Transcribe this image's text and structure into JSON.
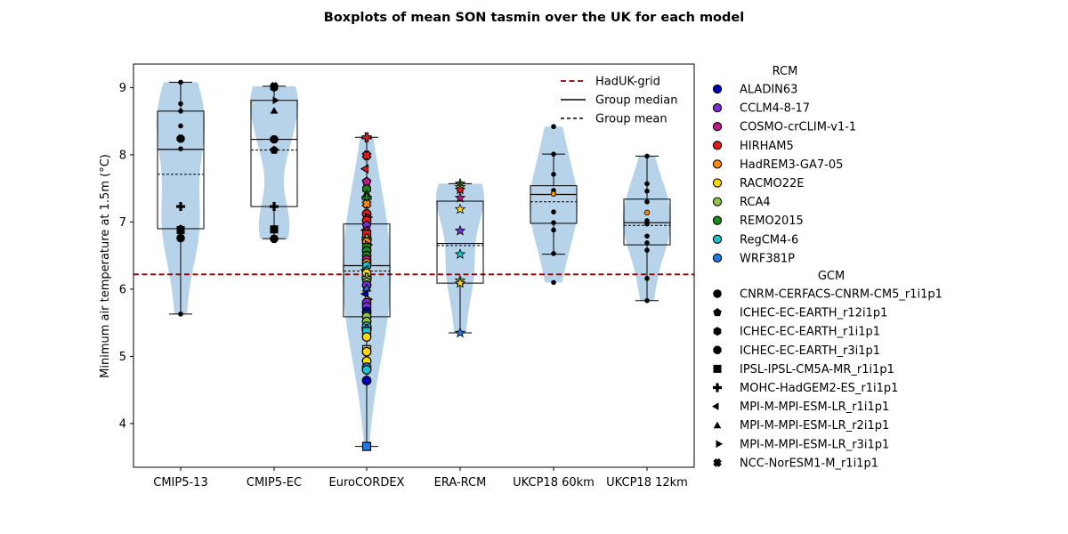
{
  "chart_data": {
    "type": "box",
    "title": "Boxplots of mean SON tasmin over the UK for each model",
    "ylabel": "Minimum air temperature at 1.5m (°C)",
    "xlabel": "",
    "ylim": [
      3.35,
      9.35
    ],
    "yticks": [
      4,
      5,
      6,
      7,
      8,
      9
    ],
    "reference_line": {
      "label": "HadUK-grid",
      "value": 6.22,
      "color": "#8b0000"
    },
    "line_legend": [
      {
        "label": "HadUK-grid",
        "style": "dashed",
        "color": "#8b0000"
      },
      {
        "label": "Group median",
        "style": "solid",
        "color": "#000000"
      },
      {
        "label": "Group mean",
        "style": "dashed",
        "color": "#000000"
      }
    ],
    "rcm_legend_title": "RCM",
    "rcm_legend": [
      {
        "label": "ALADIN63",
        "color": "#0000b4"
      },
      {
        "label": "CCLM4-8-17",
        "color": "#7b2fd6"
      },
      {
        "label": "COSMO-crCLIM-v1-1",
        "color": "#c0188a"
      },
      {
        "label": "HIRHAM5",
        "color": "#e41a1c"
      },
      {
        "label": "HadREM3-GA7-05",
        "color": "#ff8c00"
      },
      {
        "label": "RACMO22E",
        "color": "#ffd700"
      },
      {
        "label": "RCA4",
        "color": "#8dc63f"
      },
      {
        "label": "REMO2015",
        "color": "#1a8a1a"
      },
      {
        "label": "RegCM4-6",
        "color": "#17c6cf"
      },
      {
        "label": "WRF381P",
        "color": "#1e7be6"
      }
    ],
    "gcm_legend_title": "GCM",
    "gcm_legend": [
      {
        "label": "CNRM-CERFACS-CNRM-CM5_r1i1p1",
        "marker": "circle"
      },
      {
        "label": "ICHEC-EC-EARTH_r12i1p1",
        "marker": "pentagon"
      },
      {
        "label": "ICHEC-EC-EARTH_r1i1p1",
        "marker": "hexagon"
      },
      {
        "label": "ICHEC-EC-EARTH_r3i1p1",
        "marker": "octagon"
      },
      {
        "label": "IPSL-IPSL-CM5A-MR_r1i1p1",
        "marker": "square"
      },
      {
        "label": "MOHC-HadGEM2-ES_r1i1p1",
        "marker": "plus"
      },
      {
        "label": "MPI-M-MPI-ESM-LR_r1i1p1",
        "marker": "triangle-left"
      },
      {
        "label": "MPI-M-MPI-ESM-LR_r2i1p1",
        "marker": "triangle-up"
      },
      {
        "label": "MPI-M-MPI-ESM-LR_r3i1p1",
        "marker": "triangle-right"
      },
      {
        "label": "NCC-NorESM1-M_r1i1p1",
        "marker": "x"
      }
    ],
    "groups": [
      {
        "name": "CMIP5-13",
        "min": 5.63,
        "q1": 6.9,
        "median": 8.08,
        "mean": 7.71,
        "q3": 8.65,
        "max": 9.08,
        "violin_bottom": 5.63,
        "violin_top": 9.08,
        "points": [
          {
            "v": 9.08,
            "m": "dot"
          },
          {
            "v": 8.76,
            "m": "dot"
          },
          {
            "v": 8.65,
            "m": "dot"
          },
          {
            "v": 8.43,
            "m": "dot"
          },
          {
            "v": 8.24,
            "m": "octagon"
          },
          {
            "v": 8.09,
            "m": "dot"
          },
          {
            "v": 7.23,
            "m": "plus"
          },
          {
            "v": 6.92,
            "m": "dot"
          },
          {
            "v": 6.88,
            "m": "square"
          },
          {
            "v": 6.76,
            "m": "circle"
          },
          {
            "v": 5.63,
            "m": "dot"
          }
        ]
      },
      {
        "name": "CMIP5-EC",
        "min": 6.75,
        "q1": 7.23,
        "median": 8.23,
        "mean": 8.07,
        "q3": 8.81,
        "max": 9.02,
        "violin_bottom": 6.75,
        "violin_top": 9.02,
        "points": [
          {
            "v": 9.02,
            "m": "x"
          },
          {
            "v": 9.0,
            "m": "hexagon"
          },
          {
            "v": 8.81,
            "m": "triangle-right"
          },
          {
            "v": 8.66,
            "m": "triangle-up"
          },
          {
            "v": 8.23,
            "m": "octagon"
          },
          {
            "v": 8.07,
            "m": "pentagon"
          },
          {
            "v": 7.23,
            "m": "plus"
          },
          {
            "v": 6.89,
            "m": "square"
          },
          {
            "v": 6.75,
            "m": "circle"
          }
        ]
      },
      {
        "name": "EuroCORDEX",
        "min": 3.66,
        "q1": 5.59,
        "median": 6.35,
        "mean": 6.27,
        "q3": 6.97,
        "max": 8.26,
        "violin_bottom": 3.66,
        "violin_top": 8.26,
        "points": [
          {
            "v": 8.26,
            "m": "plus",
            "c": 3
          },
          {
            "v": 7.99,
            "m": "x",
            "c": 3
          },
          {
            "v": 7.79,
            "m": "triangle-left",
            "c": 3
          },
          {
            "v": 7.6,
            "m": "pentagon",
            "c": 2
          },
          {
            "v": 7.49,
            "m": "hexagon",
            "c": 7
          },
          {
            "v": 7.42,
            "m": "triangle-up",
            "c": 7
          },
          {
            "v": 7.36,
            "m": "plus",
            "c": 7
          },
          {
            "v": 7.27,
            "m": "x",
            "c": 4
          },
          {
            "v": 7.12,
            "m": "circle",
            "c": 3
          },
          {
            "v": 7.07,
            "m": "triangle-right",
            "c": 2
          },
          {
            "v": 7.02,
            "m": "circle",
            "c": 3
          },
          {
            "v": 6.95,
            "m": "pentagon",
            "c": 1
          },
          {
            "v": 6.88,
            "m": "triangle-left",
            "c": 3
          },
          {
            "v": 6.82,
            "m": "square",
            "c": 3
          },
          {
            "v": 6.75,
            "m": "plus",
            "c": 6
          },
          {
            "v": 6.7,
            "m": "circle",
            "c": 4
          },
          {
            "v": 6.66,
            "m": "triangle-right",
            "c": 5
          },
          {
            "v": 6.62,
            "m": "square",
            "c": 7
          },
          {
            "v": 6.57,
            "m": "circle",
            "c": 7
          },
          {
            "v": 6.5,
            "m": "circle",
            "c": 7
          },
          {
            "v": 6.44,
            "m": "circle",
            "c": 2
          },
          {
            "v": 6.39,
            "m": "circle",
            "c": 4
          },
          {
            "v": 6.35,
            "m": "hexagon",
            "c": 8
          },
          {
            "v": 6.29,
            "m": "triangle-left",
            "c": 8
          },
          {
            "v": 6.24,
            "m": "octagon",
            "c": 5
          },
          {
            "v": 6.17,
            "m": "plus",
            "c": 6
          },
          {
            "v": 6.11,
            "m": "pentagon",
            "c": 6
          },
          {
            "v": 6.06,
            "m": "circle",
            "c": 1
          },
          {
            "v": 6.02,
            "m": "triangle-up",
            "c": 9
          },
          {
            "v": 5.93,
            "m": "triangle-left",
            "c": 0
          },
          {
            "v": 5.85,
            "m": "triangle-right",
            "c": 5
          },
          {
            "v": 5.8,
            "m": "circle",
            "c": 1
          },
          {
            "v": 5.74,
            "m": "octagon",
            "c": 1
          },
          {
            "v": 5.67,
            "m": "circle",
            "c": 0
          },
          {
            "v": 5.62,
            "m": "x",
            "c": 9
          },
          {
            "v": 5.59,
            "m": "circle",
            "c": 6
          },
          {
            "v": 5.52,
            "m": "circle",
            "c": 6
          },
          {
            "v": 5.45,
            "m": "circle",
            "c": 8
          },
          {
            "v": 5.41,
            "m": "plus",
            "c": 9
          },
          {
            "v": 5.37,
            "m": "square",
            "c": 8
          },
          {
            "v": 5.29,
            "m": "circle",
            "c": 5
          },
          {
            "v": 5.1,
            "m": "square",
            "c": 5
          },
          {
            "v": 5.07,
            "m": "circle",
            "c": 5
          },
          {
            "v": 4.93,
            "m": "circle",
            "c": 5
          },
          {
            "v": 4.84,
            "m": "circle",
            "c": 9
          },
          {
            "v": 4.8,
            "m": "circle",
            "c": 8
          },
          {
            "v": 4.64,
            "m": "circle",
            "c": 0
          },
          {
            "v": 3.66,
            "m": "square",
            "c": 9
          }
        ]
      },
      {
        "name": "ERA-RCM",
        "min": 5.35,
        "q1": 6.09,
        "median": 6.68,
        "mean": 6.65,
        "q3": 7.31,
        "max": 7.57,
        "violin_bottom": 5.35,
        "violin_top": 7.57,
        "points": [
          {
            "v": 7.57,
            "m": "star",
            "c": 7
          },
          {
            "v": 7.52,
            "m": "star",
            "c": 6
          },
          {
            "v": 7.48,
            "m": "star",
            "c": 3
          },
          {
            "v": 7.36,
            "m": "star",
            "c": 2
          },
          {
            "v": 7.19,
            "m": "star",
            "c": 5
          },
          {
            "v": 6.87,
            "m": "star",
            "c": 1
          },
          {
            "v": 6.52,
            "m": "star",
            "c": 8
          },
          {
            "v": 6.13,
            "m": "star",
            "c": 6
          },
          {
            "v": 6.09,
            "m": "star",
            "c": 5
          },
          {
            "v": 5.35,
            "m": "star",
            "c": 9
          }
        ]
      },
      {
        "name": "UKCP18 60km",
        "min": 6.52,
        "q1": 6.98,
        "median": 7.41,
        "mean": 7.3,
        "q3": 7.54,
        "max": 8.01,
        "violin_bottom": 6.1,
        "violin_top": 8.42,
        "points": [
          {
            "v": 8.42,
            "m": "dot"
          },
          {
            "v": 8.01,
            "m": "dot"
          },
          {
            "v": 7.71,
            "m": "dot"
          },
          {
            "v": 7.47,
            "m": "dot"
          },
          {
            "v": 7.42,
            "m": "dot",
            "c": 4
          },
          {
            "v": 7.15,
            "m": "dot"
          },
          {
            "v": 6.99,
            "m": "dot"
          },
          {
            "v": 6.88,
            "m": "dot"
          },
          {
            "v": 6.53,
            "m": "dot"
          },
          {
            "v": 6.1,
            "m": "dot"
          }
        ]
      },
      {
        "name": "UKCP18 12km",
        "min": 5.83,
        "q1": 6.66,
        "median": 6.99,
        "mean": 6.95,
        "q3": 7.34,
        "max": 7.98,
        "violin_bottom": 5.83,
        "violin_top": 7.98,
        "points": [
          {
            "v": 7.98,
            "m": "dot"
          },
          {
            "v": 7.57,
            "m": "dot"
          },
          {
            "v": 7.46,
            "m": "dot"
          },
          {
            "v": 7.3,
            "m": "dot"
          },
          {
            "v": 7.14,
            "m": "dot",
            "c": 4
          },
          {
            "v": 7.02,
            "m": "dot"
          },
          {
            "v": 6.97,
            "m": "dot"
          },
          {
            "v": 6.79,
            "m": "dot"
          },
          {
            "v": 6.69,
            "m": "dot"
          },
          {
            "v": 6.58,
            "m": "dot"
          },
          {
            "v": 6.16,
            "m": "dot"
          },
          {
            "v": 5.83,
            "m": "dot"
          }
        ]
      }
    ]
  }
}
